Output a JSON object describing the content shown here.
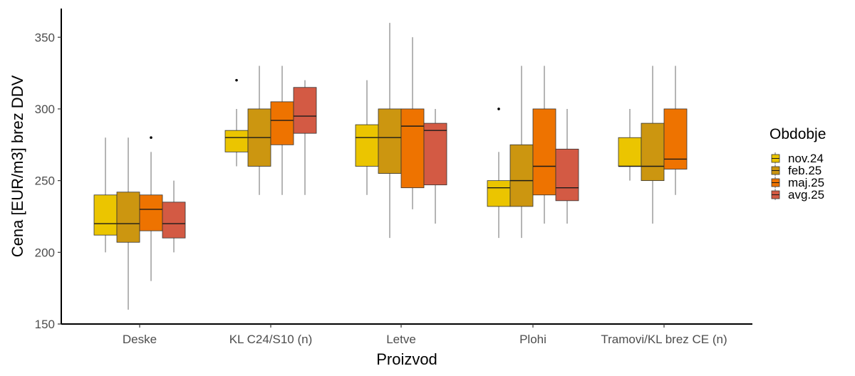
{
  "chart_data": {
    "type": "boxplot",
    "xlabel": "Proizvod",
    "ylabel": "Cena [EUR/m3] brez DDV",
    "ylim": [
      150,
      370
    ],
    "yticks": [
      150,
      200,
      250,
      300,
      350
    ],
    "grid": false,
    "legend_title": "Obdobje",
    "legend_position": "right",
    "categories": [
      "Deske",
      "KL C24/S10 (n)",
      "Letve",
      "Plohi",
      "Tramovi/KL brez CE (n)"
    ],
    "series": [
      {
        "name": "nov.24",
        "color": "#EBC500",
        "boxes": [
          {
            "category": "Deske",
            "min": 200,
            "q1": 212,
            "median": 220,
            "q3": 240,
            "max": 280,
            "outliers": []
          },
          {
            "category": "KL C24/S10 (n)",
            "min": 260,
            "q1": 270,
            "median": 280,
            "q3": 285,
            "max": 300,
            "outliers": [
              320
            ]
          },
          {
            "category": "Letve",
            "min": 240,
            "q1": 260,
            "median": 280,
            "q3": 289,
            "max": 320,
            "outliers": []
          },
          {
            "category": "Plohi",
            "min": 210,
            "q1": 232,
            "median": 245,
            "q3": 250,
            "max": 270,
            "outliers": [
              300
            ]
          },
          {
            "category": "Tramovi/KL brez CE (n)",
            "min": 250,
            "q1": 260,
            "median": 260,
            "q3": 280,
            "max": 300,
            "outliers": []
          }
        ]
      },
      {
        "name": "feb.25",
        "color": "#CC9610",
        "boxes": [
          {
            "category": "Deske",
            "min": 160,
            "q1": 207,
            "median": 220,
            "q3": 242,
            "max": 280,
            "outliers": []
          },
          {
            "category": "KL C24/S10 (n)",
            "min": 240,
            "q1": 260,
            "median": 280,
            "q3": 300,
            "max": 330,
            "outliers": []
          },
          {
            "category": "Letve",
            "min": 210,
            "q1": 255,
            "median": 280,
            "q3": 300,
            "max": 360,
            "outliers": []
          },
          {
            "category": "Plohi",
            "min": 210,
            "q1": 232,
            "median": 250,
            "q3": 275,
            "max": 330,
            "outliers": []
          },
          {
            "category": "Tramovi/KL brez CE (n)",
            "min": 220,
            "q1": 250,
            "median": 260,
            "q3": 290,
            "max": 330,
            "outliers": []
          }
        ]
      },
      {
        "name": "maj.25",
        "color": "#EE7300",
        "boxes": [
          {
            "category": "Deske",
            "min": 180,
            "q1": 215,
            "median": 230,
            "q3": 240,
            "max": 270,
            "outliers": [
              280
            ]
          },
          {
            "category": "KL C24/S10 (n)",
            "min": 240,
            "q1": 275,
            "median": 292,
            "q3": 305,
            "max": 330,
            "outliers": []
          },
          {
            "category": "Letve",
            "min": 230,
            "q1": 245,
            "median": 288,
            "q3": 300,
            "max": 350,
            "outliers": []
          },
          {
            "category": "Plohi",
            "min": 220,
            "q1": 240,
            "median": 260,
            "q3": 300,
            "max": 330,
            "outliers": []
          },
          {
            "category": "Tramovi/KL brez CE (n)",
            "min": 240,
            "q1": 258,
            "median": 265,
            "q3": 300,
            "max": 330,
            "outliers": []
          }
        ]
      },
      {
        "name": "avg.25",
        "color": "#D35A44",
        "boxes": [
          {
            "category": "Deske",
            "min": 200,
            "q1": 210,
            "median": 220,
            "q3": 235,
            "max": 250,
            "outliers": []
          },
          {
            "category": "KL C24/S10 (n)",
            "min": 240,
            "q1": 283,
            "median": 295,
            "q3": 315,
            "max": 320,
            "outliers": []
          },
          {
            "category": "Letve",
            "min": 220,
            "q1": 247,
            "median": 285,
            "q3": 290,
            "max": 300,
            "outliers": []
          },
          {
            "category": "Plohi",
            "min": 220,
            "q1": 236,
            "median": 245,
            "q3": 272,
            "max": 300,
            "outliers": []
          }
        ]
      }
    ]
  }
}
